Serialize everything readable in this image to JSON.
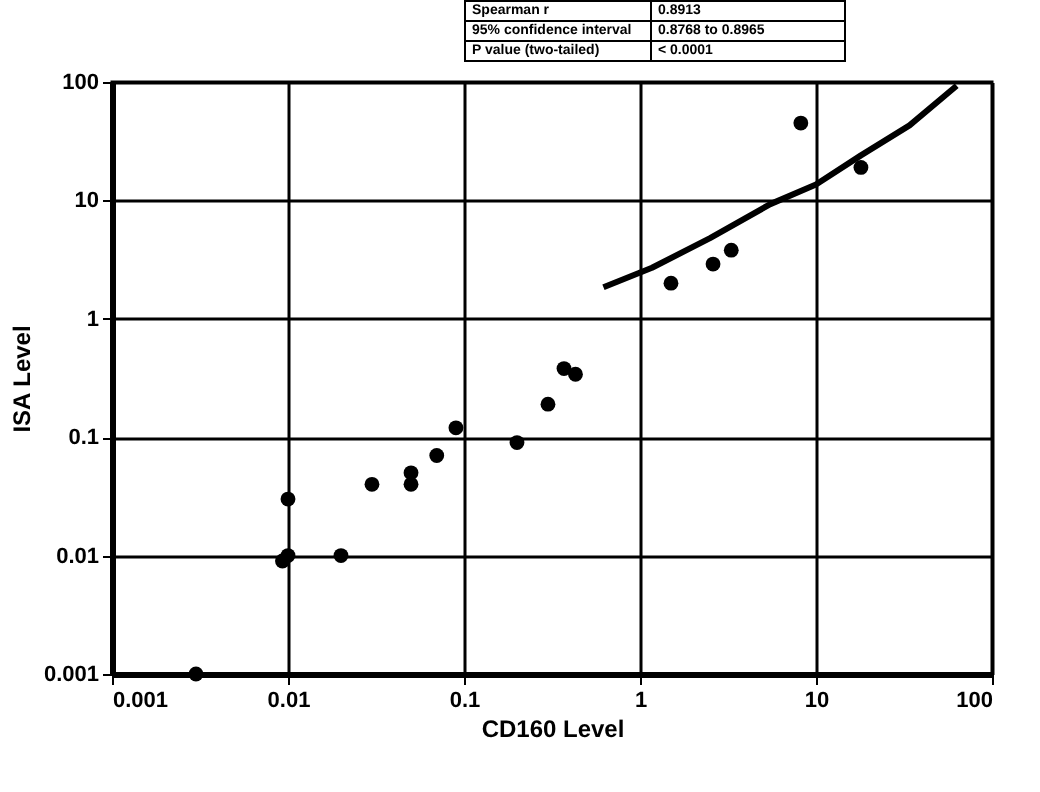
{
  "chart_data": {
    "type": "scatter",
    "xlabel": "CD160 Level",
    "ylabel": "ISA Level",
    "annotations": [
      "Spearman r",
      "0.8913",
      "95% confidence interval",
      "0.8768 to 0.8965",
      "P value (two-tailed)",
      "< 0.0001"
    ],
    "log": "xy",
    "grid": true,
    "xlim": [
      0.001,
      100
    ],
    "xticks": [
      0.001,
      0.01,
      0.1,
      1,
      10,
      100
    ],
    "ylim": [
      0.001,
      100
    ],
    "yticks": [
      0.001,
      0.01,
      0.1,
      1,
      10,
      100
    ],
    "series": [
      {
        "marker": "circle",
        "color": "#000000",
        "x": [
          0.003,
          0.0093,
          0.01,
          0.01,
          0.02,
          0.03,
          0.05,
          0.05,
          0.07,
          0.09,
          0.2,
          0.3,
          0.37,
          0.43,
          1.5,
          2.6,
          3.3,
          8.2,
          18
        ],
        "values": [
          0.001,
          0.009,
          0.01,
          0.03,
          0.01,
          0.04,
          0.05,
          0.04,
          0.07,
          0.12,
          0.09,
          0.19,
          0.38,
          0.34,
          2,
          2.9,
          3.8,
          45,
          19
        ]
      },
      {
        "type": "line",
        "color": "#000000",
        "x": [
          0.62,
          1.17,
          2.5,
          5.5,
          10,
          18,
          34,
          63
        ],
        "values": [
          1.85,
          2.7,
          4.8,
          9.3,
          13.6,
          24,
          43,
          93
        ]
      }
    ]
  }
}
